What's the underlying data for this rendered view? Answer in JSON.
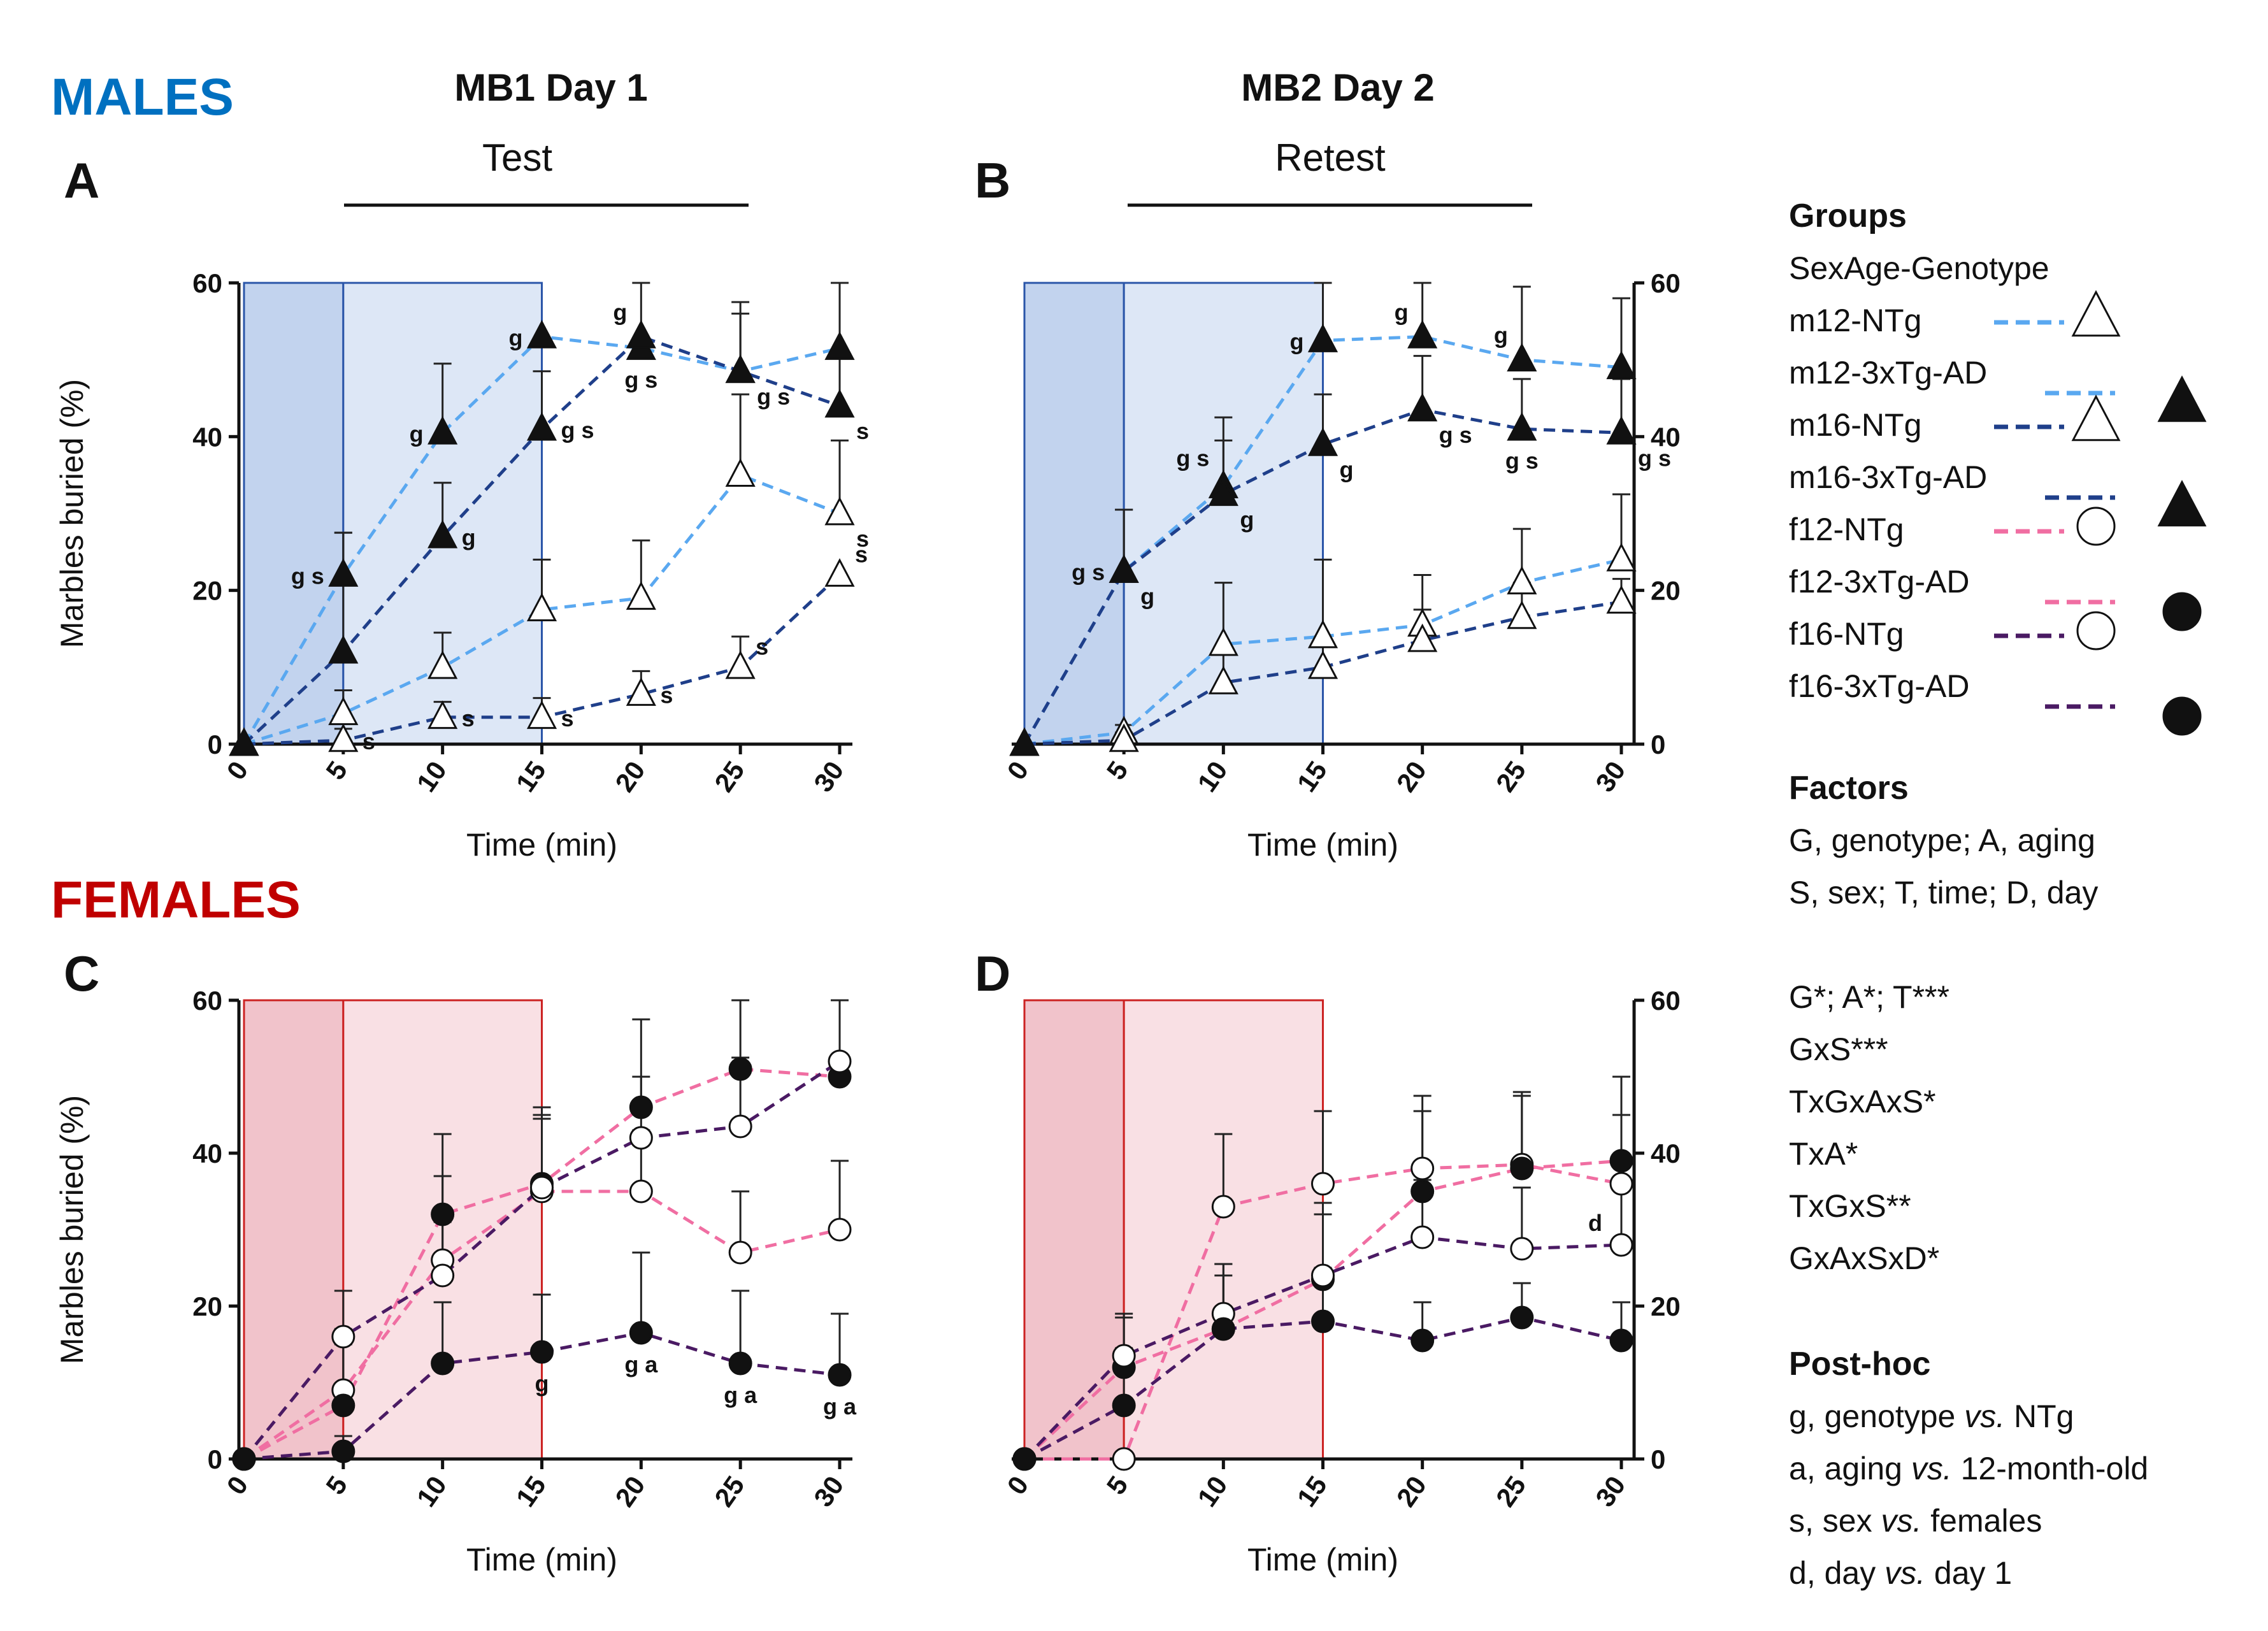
{
  "colors": {
    "m12": "#5aa8f0",
    "m16": "#1f3f8a",
    "f12": "#f06ea2",
    "f16": "#4a1a63",
    "male_shade_dark": "#c2d3ee",
    "male_shade_light": "#dde7f6",
    "male_border": "#2a55a8",
    "female_shade_dark": "#f1c3cb",
    "female_shade_light": "#f9e0e4",
    "female_border": "#cc2222",
    "male_heading": "#0070c0",
    "female_heading": "#c00000"
  },
  "headings": {
    "males": "MALES",
    "females": "FEMALES",
    "day1": "MB1 Day 1",
    "day2": "MB2 Day 2",
    "test": "Test",
    "retest": "Retest"
  },
  "legend": {
    "groups_title": "Groups",
    "groups_subtitle": "SexAge-Genotype",
    "groups": [
      {
        "label": "m12-NTg",
        "series": "m12",
        "marker": "open-triangle"
      },
      {
        "label": "m12-3xTg-AD",
        "series": "m12",
        "marker": "filled-triangle"
      },
      {
        "label": "m16-NTg",
        "series": "m16",
        "marker": "open-triangle"
      },
      {
        "label": "m16-3xTg-AD",
        "series": "m16",
        "marker": "filled-triangle"
      },
      {
        "label": "f12-NTg",
        "series": "f12",
        "marker": "open-circle"
      },
      {
        "label": "f12-3xTg-AD",
        "series": "f12",
        "marker": "filled-circle"
      },
      {
        "label": "f16-NTg",
        "series": "f16",
        "marker": "open-circle"
      },
      {
        "label": "f16-3xTg-AD",
        "series": "f16",
        "marker": "filled-circle"
      }
    ],
    "factors_title": "Factors",
    "factors_lines": [
      "G, genotype; A, aging",
      "S, sex; T, time; D, day"
    ],
    "stats_lines": [
      "G*; A*; T***",
      "GxS***",
      "TxGxAxS*",
      "TxA*",
      "TxGxS**",
      "GxAxSxD*"
    ],
    "posthoc_title": "Post-hoc",
    "posthoc_lines": [
      {
        "letter": "g",
        "pre": ", genotype ",
        "vs": "vs.",
        "post": " NTg"
      },
      {
        "letter": "a",
        "pre": ", aging ",
        "vs": "vs.",
        "post": " 12-month-old"
      },
      {
        "letter": "s",
        "pre": ", sex ",
        "vs": "vs.",
        "post": " females"
      },
      {
        "letter": "d",
        "pre": ", day ",
        "vs": "vs.",
        "post": " day 1"
      }
    ]
  },
  "chart_data": [
    {
      "id": "A",
      "type": "line",
      "panel_label": "A",
      "xlabel": "Time (min)",
      "ylabel": "Marbles buried (%)",
      "x": [
        0,
        5,
        10,
        15,
        20,
        25,
        30
      ],
      "xticks": [
        "0",
        "5",
        "10",
        "15",
        "20",
        "25",
        "30"
      ],
      "ylim": [
        0,
        60
      ],
      "yticks": [
        0,
        20,
        40,
        60
      ],
      "y_axis_side": "left",
      "shade": "male",
      "shade_ranges": [
        [
          0,
          5
        ],
        [
          5,
          15
        ]
      ],
      "series": [
        {
          "name": "m12-NTg",
          "color": "m12",
          "marker": "open-triangle",
          "values": [
            0,
            4,
            10,
            17.5,
            19,
            35,
            30
          ],
          "errors": [
            0,
            3,
            4.5,
            6.5,
            7.5,
            10.5,
            9.5
          ]
        },
        {
          "name": "m12-3xTg-AD",
          "color": "m12",
          "marker": "filled-triangle",
          "values": [
            0,
            22,
            40.5,
            53,
            51.5,
            48.5,
            51.5
          ],
          "errors": [
            0,
            5.5,
            9,
            0,
            0,
            9,
            9
          ]
        },
        {
          "name": "m16-NTg",
          "color": "m16",
          "marker": "open-triangle",
          "values": [
            0,
            0.5,
            3.5,
            3.5,
            6.5,
            10,
            22
          ],
          "errors": [
            0,
            1.5,
            2,
            2.5,
            3,
            4,
            0
          ]
        },
        {
          "name": "m16-3xTg-AD",
          "color": "m16",
          "marker": "filled-triangle",
          "values": [
            0,
            12,
            27,
            41,
            53,
            48.5,
            44
          ],
          "errors": [
            0,
            15.5,
            7,
            7.5,
            7.5,
            7.5,
            16
          ]
        }
      ],
      "annotations": [
        {
          "text": "g s",
          "x": 5,
          "y": 22,
          "pos": "left"
        },
        {
          "text": "g",
          "x": 10,
          "y": 40.5,
          "pos": "left"
        },
        {
          "text": "g",
          "x": 15,
          "y": 53,
          "pos": "left"
        },
        {
          "text": "g",
          "x": 20,
          "y": 53,
          "pos": "upleft"
        },
        {
          "text": "g",
          "x": 10,
          "y": 27,
          "pos": "right"
        },
        {
          "text": "g s",
          "x": 15,
          "y": 41,
          "pos": "right"
        },
        {
          "text": "g s",
          "x": 20,
          "y": 51.5,
          "pos": "below"
        },
        {
          "text": "g s",
          "x": 25,
          "y": 48.5,
          "pos": "belowright"
        },
        {
          "text": "s",
          "x": 30,
          "y": 44,
          "pos": "belowright"
        },
        {
          "text": "s",
          "x": 5,
          "y": 0.5,
          "pos": "right"
        },
        {
          "text": "s",
          "x": 10,
          "y": 3.5,
          "pos": "right"
        },
        {
          "text": "s",
          "x": 15,
          "y": 3.5,
          "pos": "right"
        },
        {
          "text": "s",
          "x": 20,
          "y": 6.5,
          "pos": "right"
        },
        {
          "text": "s",
          "x": 25,
          "y": 10,
          "pos": "upright"
        },
        {
          "text": "s",
          "x": 30,
          "y": 22,
          "pos": "upright"
        },
        {
          "text": "s",
          "x": 30,
          "y": 30,
          "pos": "belowright"
        }
      ]
    },
    {
      "id": "B",
      "type": "line",
      "panel_label": "B",
      "xlabel": "Time (min)",
      "ylabel": "",
      "x": [
        0,
        5,
        10,
        15,
        20,
        25,
        30
      ],
      "xticks": [
        "0",
        "5",
        "10",
        "15",
        "20",
        "25",
        "30"
      ],
      "ylim": [
        0,
        60
      ],
      "yticks": [
        0,
        20,
        40,
        60
      ],
      "y_axis_side": "right",
      "shade": "male",
      "shade_ranges": [
        [
          0,
          5
        ],
        [
          5,
          15
        ]
      ],
      "series": [
        {
          "name": "m12-NTg",
          "color": "m12",
          "marker": "open-triangle",
          "values": [
            0,
            1.5,
            13,
            14,
            15.5,
            21,
            24
          ],
          "errors": [
            0,
            1,
            8,
            10,
            6.5,
            7,
            8.5
          ]
        },
        {
          "name": "m12-3xTg-AD",
          "color": "m12",
          "marker": "filled-triangle",
          "values": [
            0,
            22.5,
            33.5,
            52.5,
            53,
            50,
            49
          ],
          "errors": [
            0,
            8,
            9,
            10,
            10,
            9.5,
            9
          ]
        },
        {
          "name": "m16-NTg",
          "color": "m16",
          "marker": "open-triangle",
          "values": [
            0,
            0.5,
            8,
            10,
            13.5,
            16.5,
            18.5
          ],
          "errors": [
            0,
            1,
            4,
            4,
            4,
            4.5,
            3
          ]
        },
        {
          "name": "m16-3xTg-AD",
          "color": "m16",
          "marker": "filled-triangle",
          "values": [
            0,
            22.5,
            32.5,
            39,
            43.5,
            41,
            40.5
          ],
          "errors": [
            0,
            8,
            7,
            6.5,
            7,
            6.5,
            7
          ]
        }
      ],
      "annotations": [
        {
          "text": "g s",
          "x": 5,
          "y": 22.5,
          "pos": "left"
        },
        {
          "text": "g",
          "x": 5,
          "y": 22.5,
          "pos": "belowright"
        },
        {
          "text": "g s",
          "x": 10,
          "y": 34,
          "pos": "upleft"
        },
        {
          "text": "g",
          "x": 10,
          "y": 32.5,
          "pos": "belowright"
        },
        {
          "text": "g",
          "x": 15,
          "y": 52.5,
          "pos": "left"
        },
        {
          "text": "g",
          "x": 15,
          "y": 39,
          "pos": "belowright"
        },
        {
          "text": "g",
          "x": 20,
          "y": 53,
          "pos": "upleft"
        },
        {
          "text": "g s",
          "x": 20,
          "y": 43.5,
          "pos": "belowright"
        },
        {
          "text": "g",
          "x": 25,
          "y": 50,
          "pos": "upleft"
        },
        {
          "text": "g s",
          "x": 25,
          "y": 41,
          "pos": "below"
        },
        {
          "text": "g s",
          "x": 30,
          "y": 40.5,
          "pos": "belowright"
        }
      ]
    },
    {
      "id": "C",
      "type": "line",
      "panel_label": "C",
      "xlabel": "Time (min)",
      "ylabel": "Marbles buried (%)",
      "x": [
        0,
        5,
        10,
        15,
        20,
        25,
        30
      ],
      "xticks": [
        "0",
        "5",
        "10",
        "15",
        "20",
        "25",
        "30"
      ],
      "ylim": [
        0,
        60
      ],
      "yticks": [
        0,
        20,
        40,
        60
      ],
      "y_axis_side": "left",
      "shade": "female",
      "shade_ranges": [
        [
          0,
          5
        ],
        [
          5,
          15
        ]
      ],
      "series": [
        {
          "name": "f12-NTg",
          "color": "f12",
          "marker": "open-circle",
          "values": [
            0,
            9,
            26,
            35,
            35,
            27,
            30
          ],
          "errors": [
            0,
            8,
            11,
            10,
            8,
            8,
            9
          ]
        },
        {
          "name": "f12-3xTg-AD",
          "color": "f12",
          "marker": "filled-circle",
          "values": [
            0,
            7,
            32,
            36,
            46,
            51,
            50
          ],
          "errors": [
            0,
            8,
            10.5,
            10,
            11.5,
            9.5,
            10
          ]
        },
        {
          "name": "f16-NTg",
          "color": "f16",
          "marker": "open-circle",
          "values": [
            0,
            16,
            24,
            35.5,
            42,
            43.5,
            52
          ],
          "errors": [
            0,
            6,
            7,
            9,
            8,
            9,
            8
          ]
        },
        {
          "name": "f16-3xTg-AD",
          "color": "f16",
          "marker": "filled-circle",
          "values": [
            0,
            1,
            12.5,
            14,
            16.5,
            12.5,
            11
          ],
          "errors": [
            0,
            2,
            8,
            7.5,
            10.5,
            9.5,
            8
          ]
        }
      ],
      "annotations": [
        {
          "text": "g",
          "x": 15,
          "y": 14,
          "pos": "below"
        },
        {
          "text": "g a",
          "x": 20,
          "y": 16.5,
          "pos": "below"
        },
        {
          "text": "g a",
          "x": 25,
          "y": 12.5,
          "pos": "below"
        },
        {
          "text": "g a",
          "x": 30,
          "y": 11,
          "pos": "below"
        }
      ]
    },
    {
      "id": "D",
      "type": "line",
      "panel_label": "D",
      "xlabel": "Time (min)",
      "ylabel": "",
      "x": [
        0,
        5,
        10,
        15,
        20,
        25,
        30
      ],
      "xticks": [
        "0",
        "5",
        "10",
        "15",
        "20",
        "25",
        "30"
      ],
      "ylim": [
        0,
        60
      ],
      "yticks": [
        0,
        20,
        40,
        60
      ],
      "y_axis_side": "right",
      "shade": "female",
      "shade_ranges": [
        [
          0,
          5
        ],
        [
          5,
          15
        ]
      ],
      "series": [
        {
          "name": "f12-NTg",
          "color": "f12",
          "marker": "open-circle",
          "values": [
            0,
            0,
            33,
            36,
            38,
            38.5,
            36
          ],
          "errors": [
            0,
            0,
            9.5,
            9.5,
            9.5,
            9,
            9
          ]
        },
        {
          "name": "f12-3xTg-AD",
          "color": "f12",
          "marker": "filled-circle",
          "values": [
            0,
            12,
            17,
            23.5,
            35,
            38,
            39
          ],
          "errors": [
            0,
            7,
            8.5,
            10,
            10.5,
            10,
            11
          ]
        },
        {
          "name": "f16-NTg",
          "color": "f16",
          "marker": "open-circle",
          "values": [
            0,
            13.5,
            19,
            24,
            29,
            27.5,
            28
          ],
          "errors": [
            0,
            5,
            6.5,
            8,
            7.5,
            8,
            8
          ]
        },
        {
          "name": "f16-3xTg-AD",
          "color": "f16",
          "marker": "filled-circle",
          "values": [
            0,
            7,
            17,
            18,
            15.5,
            18.5,
            15.5
          ],
          "errors": [
            0,
            7.5,
            7,
            7,
            5,
            4.5,
            5
          ]
        }
      ],
      "annotations": [
        {
          "text": "d",
          "x": 30,
          "y": 31,
          "pos": "left"
        }
      ]
    }
  ]
}
